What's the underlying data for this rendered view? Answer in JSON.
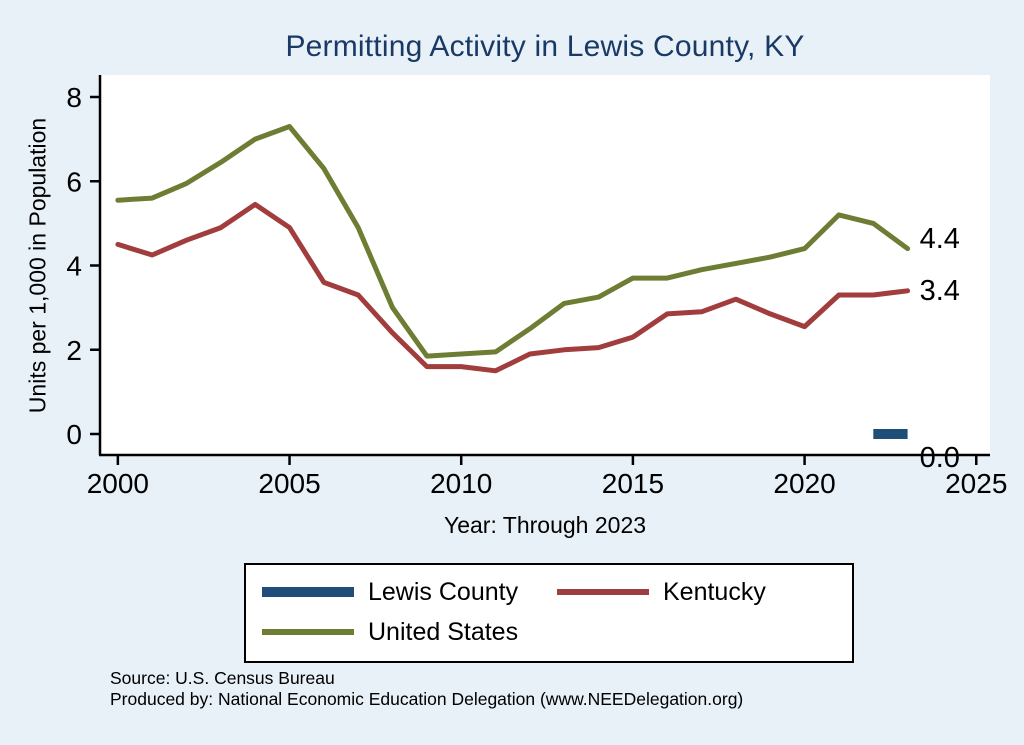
{
  "colors": {
    "background": "#e8f0f8",
    "plot_background": "#ffffff",
    "title": "#1a3a66",
    "axis": "#000000"
  },
  "source": {
    "line1": "Source: U.S. Census Bureau",
    "line2": "Produced by: National Economic Education Delegation (www.NEEDelegation.org)"
  },
  "chart_data": {
    "type": "line",
    "title": "Permitting Activity in Lewis County, KY",
    "xlabel": "Year: Through 2023",
    "ylabel": "Units per 1,000 in Population",
    "x": [
      2000,
      2001,
      2002,
      2003,
      2004,
      2005,
      2006,
      2007,
      2008,
      2009,
      2010,
      2011,
      2012,
      2013,
      2014,
      2015,
      2016,
      2017,
      2018,
      2019,
      2020,
      2021,
      2022,
      2023
    ],
    "xlim": [
      1999.48,
      2025.4
    ],
    "ylim": [
      0,
      8
    ],
    "xticks": [
      2000,
      2005,
      2010,
      2015,
      2020,
      2025
    ],
    "yticks": [
      0,
      2,
      4,
      6,
      8
    ],
    "grid": false,
    "legend_position": "bottom",
    "series": [
      {
        "name": "Lewis County",
        "color": "#1f4e79",
        "end_label": "0.0",
        "values": [
          null,
          null,
          null,
          null,
          null,
          null,
          null,
          null,
          null,
          null,
          null,
          null,
          null,
          null,
          null,
          null,
          null,
          null,
          null,
          null,
          null,
          null,
          0.0,
          0.0
        ]
      },
      {
        "name": "Kentucky",
        "color": "#a13d3d",
        "end_label": "3.4",
        "values": [
          4.5,
          4.25,
          4.6,
          4.9,
          5.45,
          4.9,
          3.6,
          3.3,
          2.4,
          1.6,
          1.6,
          1.5,
          1.9,
          2.0,
          2.05,
          2.3,
          2.85,
          2.9,
          3.2,
          2.85,
          2.55,
          3.3,
          3.3,
          3.4
        ]
      },
      {
        "name": "United States",
        "color": "#6d7d33",
        "end_label": "4.4",
        "values": [
          5.55,
          5.6,
          5.95,
          6.45,
          7.0,
          7.3,
          6.3,
          4.9,
          3.0,
          1.85,
          1.9,
          1.95,
          2.5,
          3.1,
          3.25,
          3.7,
          3.7,
          3.9,
          4.05,
          4.2,
          4.4,
          5.2,
          5.0,
          4.4
        ]
      }
    ]
  }
}
